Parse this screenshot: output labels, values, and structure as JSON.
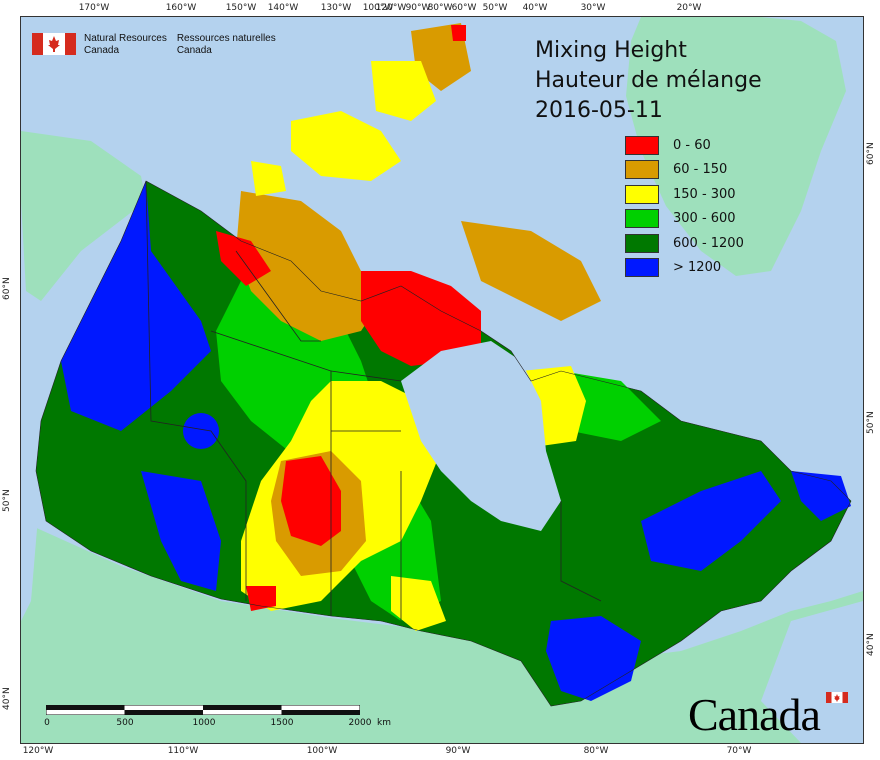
{
  "title": {
    "line1": "Mixing Height",
    "line2": "Hauteur de mélange",
    "date": "2016-05-11"
  },
  "agency": {
    "english_line1": "Natural Resources",
    "english_line2": "Canada",
    "french_line1": "Ressources naturelles",
    "french_line2": "Canada"
  },
  "legend": [
    {
      "label": "0 - 60",
      "color": "#ff0000"
    },
    {
      "label": "60 - 150",
      "color": "#d99b00"
    },
    {
      "label": "150 - 300",
      "color": "#ffff00"
    },
    {
      "label": "300 - 600",
      "color": "#00d000"
    },
    {
      "label": "600 - 1200",
      "color": "#007800"
    },
    {
      "label": "> 1200",
      "color": "#0018ff"
    }
  ],
  "longitude_top": [
    "170°W",
    "160°W",
    "150°W",
    "140°W",
    "130°W",
    "120°W",
    "100°W",
    "90°W",
    "80°W",
    "60°W",
    "50°W",
    "40°W",
    "30°W",
    "20°W"
  ],
  "longitude_bottom": [
    "120°W",
    "110°W",
    "100°W",
    "90°W",
    "80°W",
    "70°W"
  ],
  "latitude_left": [
    "60°N",
    "50°N",
    "40°N"
  ],
  "latitude_right": [
    "60°N",
    "50°N",
    "40°N"
  ],
  "scalebar": {
    "labels": [
      "0",
      "500",
      "1000",
      "1500",
      "2000"
    ],
    "unit": "km"
  },
  "wordmark": "Canada",
  "colors": {
    "ocean": "#b4d2ee",
    "land_outside": "#9ee0bc",
    "border": "#222222"
  }
}
